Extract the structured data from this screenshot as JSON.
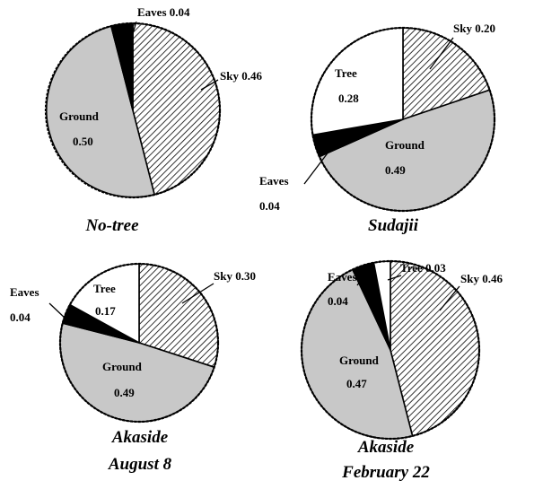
{
  "chart_data": [
    {
      "type": "pie",
      "title_lines": [
        "No-tree"
      ],
      "slices": [
        {
          "name": "Sky",
          "value": 0.46,
          "fill": "hatch"
        },
        {
          "name": "Ground",
          "value": 0.5,
          "fill": "#c8c8c8"
        },
        {
          "name": "Eaves",
          "value": 0.04,
          "fill": "#000000"
        }
      ],
      "labels": [
        {
          "text": "Eaves 0.04"
        },
        {
          "text": "Sky 0.46"
        },
        {
          "text": "Ground"
        },
        {
          "text": "0.50"
        }
      ]
    },
    {
      "type": "pie",
      "title_lines": [
        "Sudajii"
      ],
      "slices": [
        {
          "name": "Sky",
          "value": 0.2,
          "fill": "hatch"
        },
        {
          "name": "Ground",
          "value": 0.49,
          "fill": "#c8c8c8"
        },
        {
          "name": "Eaves",
          "value": 0.04,
          "fill": "#000000"
        },
        {
          "name": "Tree",
          "value": 0.28,
          "fill": "#ffffff"
        }
      ],
      "labels": [
        {
          "text": "Sky 0.20"
        },
        {
          "text": "Tree"
        },
        {
          "text": "0.28"
        },
        {
          "text": "Ground"
        },
        {
          "text": "0.49"
        },
        {
          "text": "Eaves"
        },
        {
          "text": "0.04"
        }
      ]
    },
    {
      "type": "pie",
      "title_lines": [
        "Akaside",
        "August 8"
      ],
      "slices": [
        {
          "name": "Sky",
          "value": 0.3,
          "fill": "hatch"
        },
        {
          "name": "Ground",
          "value": 0.49,
          "fill": "#c8c8c8"
        },
        {
          "name": "Eaves",
          "value": 0.04,
          "fill": "#000000"
        },
        {
          "name": "Tree",
          "value": 0.17,
          "fill": "#ffffff"
        }
      ],
      "labels": [
        {
          "text": "Sky 0.30"
        },
        {
          "text": "Eaves"
        },
        {
          "text": "0.04"
        },
        {
          "text": "Tree"
        },
        {
          "text": "0.17"
        },
        {
          "text": "Ground"
        },
        {
          "text": "0.49"
        }
      ]
    },
    {
      "type": "pie",
      "title_lines": [
        "Akaside",
        "February 22"
      ],
      "slices": [
        {
          "name": "Sky",
          "value": 0.46,
          "fill": "hatch"
        },
        {
          "name": "Ground",
          "value": 0.47,
          "fill": "#c8c8c8"
        },
        {
          "name": "Eaves",
          "value": 0.04,
          "fill": "#000000"
        },
        {
          "name": "Tree",
          "value": 0.03,
          "fill": "#ffffff"
        }
      ],
      "labels": [
        {
          "text": "Eaves"
        },
        {
          "text": "0.04"
        },
        {
          "text": "Tree 0.03"
        },
        {
          "text": "Sky 0.46"
        },
        {
          "text": "Ground"
        },
        {
          "text": "0.47"
        }
      ]
    }
  ]
}
